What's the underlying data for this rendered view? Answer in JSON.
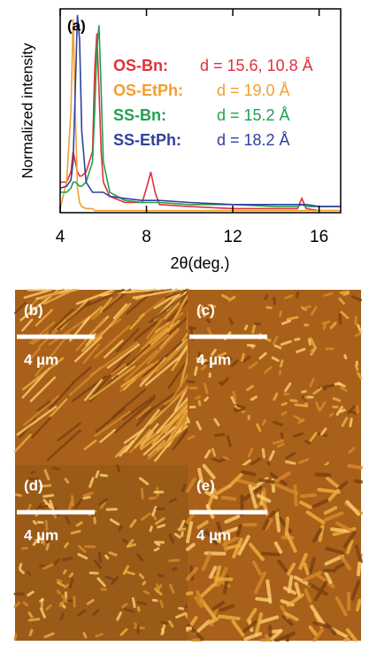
{
  "chart_data": {
    "type": "line",
    "panel_label": "(a)",
    "x_label": "2θ(deg.)",
    "y_label": "Normalized intensity",
    "x": [
      4.0,
      4.3,
      4.5,
      4.6,
      4.7,
      4.8,
      4.9,
      5.0,
      5.2,
      5.5,
      5.6,
      5.7,
      5.8,
      5.9,
      6.0,
      6.3,
      7.0,
      7.8,
      8.0,
      8.2,
      8.4,
      8.6,
      10,
      12,
      14,
      15,
      15.2,
      15.4,
      16,
      17
    ],
    "series": [
      {
        "name": "OS-Bn:",
        "label": "d = 15.6, 10.8 Å",
        "color": "#e0303a",
        "values": [
          0.15,
          0.15,
          0.2,
          0.3,
          0.25,
          0.2,
          0.18,
          0.18,
          0.2,
          0.3,
          0.7,
          0.88,
          0.6,
          0.3,
          0.15,
          0.08,
          0.05,
          0.05,
          0.12,
          0.2,
          0.1,
          0.04,
          0.03,
          0.02,
          0.02,
          0.02,
          0.07,
          0.02,
          0.01,
          0.01
        ]
      },
      {
        "name": "OS-EtPh:",
        "label": "d = 19.0 Å",
        "color": "#f0a030",
        "values": [
          0.02,
          0.15,
          0.5,
          0.95,
          0.5,
          0.12,
          0.05,
          0.03,
          0.02,
          0.02,
          0.01,
          0.01,
          0.01,
          0.01,
          0.01,
          0.01,
          0.01,
          0.01,
          0.01,
          0.01,
          0.01,
          0.01,
          0.01,
          0.01,
          0.01,
          0.01,
          0.01,
          0.01,
          0.01,
          0.01
        ]
      },
      {
        "name": "SS-Bn:",
        "label": "d = 15.2 Å",
        "color": "#20a050",
        "values": [
          0.1,
          0.1,
          0.12,
          0.15,
          0.15,
          0.14,
          0.13,
          0.13,
          0.15,
          0.25,
          0.5,
          0.8,
          0.92,
          0.6,
          0.25,
          0.1,
          0.06,
          0.05,
          0.05,
          0.05,
          0.05,
          0.05,
          0.04,
          0.04,
          0.03,
          0.03,
          0.04,
          0.03,
          0.03,
          0.03
        ]
      },
      {
        "name": "SS-EtPh:",
        "label": "d = 18.2 Å",
        "color": "#3040a0",
        "values": [
          0.12,
          0.13,
          0.16,
          0.25,
          0.6,
          0.97,
          0.85,
          0.4,
          0.15,
          0.1,
          0.1,
          0.1,
          0.1,
          0.1,
          0.1,
          0.08,
          0.07,
          0.06,
          0.06,
          0.06,
          0.06,
          0.06,
          0.05,
          0.04,
          0.04,
          0.04,
          0.04,
          0.04,
          0.03,
          0.03
        ]
      }
    ],
    "xlim": [
      4,
      17
    ],
    "ylim": [
      0,
      1
    ],
    "xticks": [
      4,
      8,
      12,
      16
    ]
  },
  "panels": [
    {
      "label": "(b)",
      "scale": "4 µm"
    },
    {
      "label": "(c)",
      "scale": "4 µm"
    },
    {
      "label": "(d)",
      "scale": "4 µm"
    },
    {
      "label": "(e)",
      "scale": "4 µm"
    }
  ]
}
